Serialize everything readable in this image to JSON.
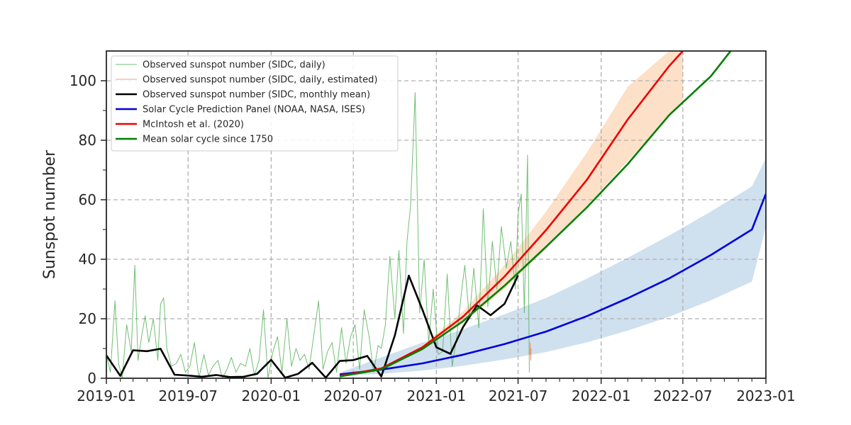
{
  "chart_data": {
    "type": "line",
    "title": "",
    "xlabel": "",
    "ylabel": "Sunspot number",
    "xlim": [
      "2019-01-01",
      "2023-01-01"
    ],
    "ylim": [
      0,
      110
    ],
    "x_ticks": [
      "2019-01",
      "2019-07",
      "2020-01",
      "2020-07",
      "2021-01",
      "2021-07",
      "2022-01",
      "2022-07",
      "2023-01"
    ],
    "y_ticks": [
      0,
      20,
      40,
      60,
      80,
      100
    ],
    "grid": true,
    "legend_position": "top-left",
    "colors": {
      "daily": "#4caf50",
      "daily_estimated": "#ff7f50",
      "monthly": "#000000",
      "panel": "#0000dd",
      "mcintosh": "#ee0000",
      "mean_cycle": "#007f00",
      "panel_band": "#cfe0ef",
      "mcintosh_band": "#fde0c8"
    },
    "series": [
      {
        "key": "daily",
        "name": "Observed sunspot number (SIDC, daily)",
        "style": "thin",
        "x": [
          "2019-01-01",
          "2019-01-10",
          "2019-01-20",
          "2019-01-28",
          "2019-02-05",
          "2019-02-15",
          "2019-02-25",
          "2019-03-05",
          "2019-03-12",
          "2019-03-20",
          "2019-03-28",
          "2019-04-05",
          "2019-04-15",
          "2019-04-25",
          "2019-05-01",
          "2019-05-08",
          "2019-05-15",
          "2019-05-25",
          "2019-06-05",
          "2019-06-15",
          "2019-06-25",
          "2019-07-05",
          "2019-07-15",
          "2019-07-25",
          "2019-08-05",
          "2019-08-15",
          "2019-08-25",
          "2019-09-05",
          "2019-09-15",
          "2019-09-25",
          "2019-10-05",
          "2019-10-15",
          "2019-10-25",
          "2019-11-05",
          "2019-11-15",
          "2019-11-25",
          "2019-12-05",
          "2019-12-15",
          "2019-12-25",
          "2020-01-05",
          "2020-01-15",
          "2020-01-25",
          "2020-02-05",
          "2020-02-15",
          "2020-02-25",
          "2020-03-05",
          "2020-03-15",
          "2020-03-25",
          "2020-04-05",
          "2020-04-15",
          "2020-04-25",
          "2020-05-05",
          "2020-05-15",
          "2020-05-25",
          "2020-06-05",
          "2020-06-15",
          "2020-06-25",
          "2020-07-05",
          "2020-07-15",
          "2020-07-25",
          "2020-08-05",
          "2020-08-15",
          "2020-08-25",
          "2020-09-01",
          "2020-09-10",
          "2020-09-20",
          "2020-10-01",
          "2020-10-10",
          "2020-10-20",
          "2020-10-28",
          "2020-11-05",
          "2020-11-15",
          "2020-11-25",
          "2020-12-05",
          "2020-12-15",
          "2020-12-25",
          "2021-01-05",
          "2021-01-15",
          "2021-01-25",
          "2021-02-05",
          "2021-02-15",
          "2021-02-25",
          "2021-03-05",
          "2021-03-15",
          "2021-03-25",
          "2021-04-05",
          "2021-04-15",
          "2021-04-25",
          "2021-05-05",
          "2021-05-15",
          "2021-05-25",
          "2021-06-05",
          "2021-06-15",
          "2021-06-25",
          "2021-07-01",
          "2021-07-08",
          "2021-07-15",
          "2021-07-22",
          "2021-07-26"
        ],
        "y": [
          8,
          2,
          26,
          5,
          0,
          18,
          9,
          38,
          6,
          14,
          21,
          12,
          20,
          6,
          25,
          27,
          10,
          4,
          5,
          8,
          2,
          4,
          12,
          0,
          8,
          1,
          4,
          6,
          0,
          3,
          7,
          2,
          5,
          4,
          10,
          1,
          6,
          23,
          0,
          9,
          14,
          2,
          20,
          4,
          10,
          6,
          8,
          3,
          15,
          26,
          3,
          9,
          12,
          2,
          17,
          5,
          14,
          18,
          3,
          23,
          14,
          2,
          11,
          10,
          18,
          41,
          20,
          43,
          15,
          46,
          58,
          96,
          22,
          40,
          12,
          30,
          8,
          9,
          35,
          4,
          14,
          28,
          38,
          20,
          37,
          17,
          57,
          24,
          46,
          30,
          51,
          37,
          46,
          30,
          55,
          62,
          22,
          75,
          2
        ]
      },
      {
        "key": "daily_estimated",
        "name": "Observed sunspot number (SIDC, daily, estimated)",
        "style": "thin",
        "x": [
          "2021-07-27",
          "2021-07-28",
          "2021-07-29",
          "2021-07-30"
        ],
        "y": [
          8,
          12,
          6,
          10
        ]
      },
      {
        "key": "monthly",
        "name": "Observed sunspot number (SIDC, monthly mean)",
        "style": "thick",
        "x": [
          "2019-01-01",
          "2019-02-01",
          "2019-03-01",
          "2019-04-01",
          "2019-05-01",
          "2019-06-01",
          "2019-07-01",
          "2019-08-01",
          "2019-09-01",
          "2019-10-01",
          "2019-11-01",
          "2019-12-01",
          "2020-01-01",
          "2020-02-01",
          "2020-03-01",
          "2020-04-01",
          "2020-05-01",
          "2020-06-01",
          "2020-07-01",
          "2020-08-01",
          "2020-09-01",
          "2020-10-01",
          "2020-11-01",
          "2020-12-01",
          "2021-01-01",
          "2021-02-01",
          "2021-03-01",
          "2021-04-01",
          "2021-05-01",
          "2021-06-01",
          "2021-07-01"
        ],
        "y": [
          7.7,
          0.8,
          9.4,
          9.1,
          9.9,
          1.2,
          0.9,
          0.5,
          1.1,
          0.4,
          0.5,
          1.5,
          6.2,
          0.2,
          1.5,
          5.2,
          0.2,
          5.8,
          6.1,
          7.5,
          0.6,
          14.4,
          34.5,
          23.1,
          10.4,
          8.2,
          17.2,
          24.5,
          21.2,
          25.0,
          34.6
        ]
      },
      {
        "key": "panel",
        "name": "Solar Cycle Prediction Panel (NOAA, NASA, ISES)",
        "style": "thick",
        "x": [
          "2020-06-01",
          "2020-09-01",
          "2020-12-01",
          "2021-03-01",
          "2021-06-01",
          "2021-09-01",
          "2021-12-01",
          "2022-03-01",
          "2022-06-01",
          "2022-09-01",
          "2022-12-01",
          "2023-01-01"
        ],
        "y": [
          1.3,
          2.9,
          5.0,
          7.9,
          11.5,
          15.7,
          20.9,
          26.9,
          33.6,
          41.4,
          50.0,
          62.0
        ],
        "band_low": [
          0.8,
          1.5,
          2.6,
          4.2,
          6.3,
          8.8,
          12.1,
          16.0,
          20.7,
          26.2,
          32.5,
          51.0
        ],
        "band_high": [
          1.9,
          7.0,
          12.0,
          16.5,
          21.5,
          27.0,
          33.5,
          40.5,
          48.0,
          56.0,
          64.5,
          74.0
        ]
      },
      {
        "key": "mcintosh",
        "name": "McIntosh et al. (2020)",
        "style": "thick",
        "x": [
          "2020-06-01",
          "2020-09-01",
          "2020-12-01",
          "2021-03-01",
          "2021-06-01",
          "2021-09-01",
          "2021-12-01",
          "2022-03-01",
          "2022-06-01",
          "2022-07-01"
        ],
        "y": [
          0.8,
          3.3,
          10.4,
          20.7,
          34.2,
          49.8,
          66.8,
          87.0,
          105.0,
          110.0
        ],
        "band_low": [
          0.6,
          3.0,
          9.5,
          18.5,
          30.0,
          43.5,
          58.0,
          73.0,
          88.0,
          93.5
        ],
        "band_high": [
          1.0,
          3.6,
          11.0,
          22.5,
          38.0,
          56.0,
          76.0,
          98.0,
          110.0,
          110.0
        ]
      },
      {
        "key": "mean_cycle",
        "name": "Mean solar cycle since 1750",
        "style": "thick",
        "x": [
          "2020-06-01",
          "2020-09-01",
          "2020-12-01",
          "2021-03-01",
          "2021-06-01",
          "2021-09-01",
          "2021-12-01",
          "2022-03-01",
          "2022-06-01",
          "2022-09-01",
          "2022-10-15"
        ],
        "y": [
          0.6,
          3.0,
          9.8,
          19.2,
          31.1,
          44.2,
          57.5,
          72.0,
          88.5,
          101.5,
          110.0
        ]
      }
    ]
  }
}
